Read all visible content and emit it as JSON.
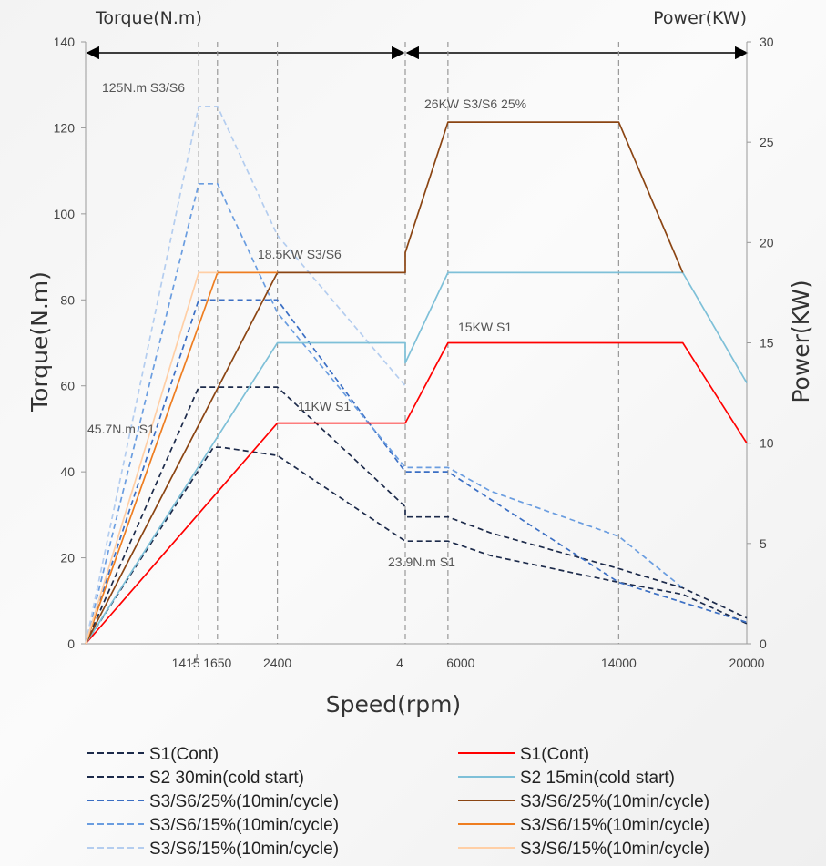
{
  "chart_data": {
    "type": "line",
    "top_left_label": "Torque(N.m)",
    "top_right_label": "Power(KW)",
    "xlabel": "Speed(rpm)",
    "ylabel_left": "Torque(N.m)",
    "ylabel_right": "Power(KW)",
    "ylim_left": [
      0,
      140
    ],
    "ylim_right": [
      0,
      30
    ],
    "y_ticks_left": [
      "0",
      "20",
      "40",
      "60",
      "80",
      "100",
      "120",
      "140"
    ],
    "y_ticks_right": [
      "0",
      "5",
      "10",
      "15",
      "20",
      "25",
      "30"
    ],
    "x_tick_labels": [
      "1415",
      "1650",
      "2400",
      "4",
      "6000",
      "14000",
      "20000"
    ],
    "x_scale": "piecewise: left half 0-4000 rpm (torque curves), right half 4000-20000 rpm (power curves)",
    "annotations": {
      "a125": "125N.m  S3/S6",
      "a26": "26KW  S3/S6 25%",
      "a185": "18.5KW   S3/S6",
      "a15": "15KW S1",
      "a11": "11KW   S1",
      "a457": "45.7N.m  S1",
      "a239": "23.9N.m S1"
    },
    "series": [
      {
        "name": "S1(Cont)",
        "color": "#1c2a4a",
        "style": "dashed",
        "axis": "torque",
        "x": [
          0,
          1600,
          1650,
          1700,
          2400,
          4000,
          4000,
          6000,
          8000,
          14000,
          17000,
          20000
        ],
        "y": [
          0,
          45.7,
          45.7,
          45.7,
          43.8,
          23.9,
          23.9,
          23.9,
          20.5,
          14.3,
          11.5,
          4.7
        ]
      },
      {
        "name": "S2 30min(cold start)",
        "color": "#1c2a4a",
        "style": "dashed",
        "axis": "torque",
        "x": [
          0,
          1415,
          2400,
          4000,
          4000,
          6000,
          8000,
          14000,
          17000,
          20000
        ],
        "y": [
          0,
          59.7,
          59.7,
          31.9,
          29.5,
          29.5,
          25.8,
          17.5,
          13.0,
          6.0
        ]
      },
      {
        "name": "S3/S6/25%(10min/cycle)",
        "color": "#3b6fc4",
        "style": "dashed",
        "axis": "torque",
        "x": [
          0,
          1415,
          2400,
          4000,
          6000,
          14000,
          20000
        ],
        "y": [
          0,
          80.0,
          80.0,
          40.0,
          40.0,
          14.3,
          5.0
        ]
      },
      {
        "name": "S3/S6/15%(10min/cycle)",
        "color": "#6a9de0",
        "style": "dashed",
        "axis": "torque",
        "x": [
          0,
          1415,
          1650,
          2400,
          4000,
          4000,
          6000,
          8000,
          14000,
          17000
        ],
        "y": [
          0,
          107,
          107,
          77,
          41,
          41,
          41,
          35.5,
          25,
          13
        ]
      },
      {
        "name": "S3/S6/15%(10min/cycle)",
        "color": "#b4cdef",
        "style": "dashed",
        "axis": "torque",
        "x": [
          0,
          1415,
          1650,
          2400,
          4000
        ],
        "y": [
          0,
          125,
          125,
          95,
          60
        ]
      },
      {
        "name": "S1(Cont)",
        "color": "#ff0000",
        "style": "solid",
        "axis": "power",
        "x": [
          0,
          2400,
          4000,
          4000,
          6000,
          14000,
          17000,
          20000
        ],
        "y": [
          0,
          11,
          11,
          11,
          15,
          15,
          15,
          10
        ]
      },
      {
        "name": "S2 15min(cold start)",
        "color": "#7ec0d8",
        "style": "solid",
        "axis": "power",
        "x": [
          0,
          2400,
          4000,
          4000,
          6000,
          14000,
          17000,
          20000
        ],
        "y": [
          0,
          15,
          15,
          14,
          18.5,
          18.5,
          18.5,
          13
        ]
      },
      {
        "name": "S3/S6/25%(10min/cycle)",
        "color": "#8b4513",
        "style": "solid",
        "axis": "power",
        "x": [
          0,
          2400,
          4000,
          4000,
          6000,
          14000,
          17000
        ],
        "y": [
          0,
          18.5,
          18.5,
          19.5,
          26,
          26,
          18.5
        ]
      },
      {
        "name": "S3/S6/15%(10min/cycle)",
        "color": "#ee7d20",
        "style": "solid",
        "axis": "power",
        "x": [
          0,
          1650,
          2400
        ],
        "y": [
          0,
          18.5,
          18.5
        ]
      },
      {
        "name": "S3/S6/15%(10min/cycle)",
        "color": "#ffcfa6",
        "style": "solid",
        "axis": "power",
        "x": [
          0,
          1415,
          1650
        ],
        "y": [
          0,
          18.5,
          18.5
        ]
      }
    ],
    "legend": {
      "placement": "bottom, two columns",
      "items": [
        {
          "label": "S1(Cont)",
          "color": "#1c2a4a",
          "style": "dashed"
        },
        {
          "label": "S2 30min(cold start)",
          "color": "#1c2a4a",
          "style": "dashed"
        },
        {
          "label": "S3/S6/25%(10min/cycle)",
          "color": "#3b6fc4",
          "style": "dashed"
        },
        {
          "label": "S3/S6/15%(10min/cycle)",
          "color": "#6a9de0",
          "style": "dashed"
        },
        {
          "label": "S3/S6/15%(10min/cycle)",
          "color": "#b4cdef",
          "style": "dashed"
        },
        {
          "label": "S1(Cont)",
          "color": "#ff0000",
          "style": "solid"
        },
        {
          "label": "S2 15min(cold start)",
          "color": "#7ec0d8",
          "style": "solid"
        },
        {
          "label": "S3/S6/25%(10min/cycle)",
          "color": "#8b4513",
          "style": "solid"
        },
        {
          "label": "S3/S6/15%(10min/cycle)",
          "color": "#ee7d20",
          "style": "solid"
        },
        {
          "label": "S3/S6/15%(10min/cycle)",
          "color": "#ffcfa6",
          "style": "solid"
        }
      ]
    }
  }
}
